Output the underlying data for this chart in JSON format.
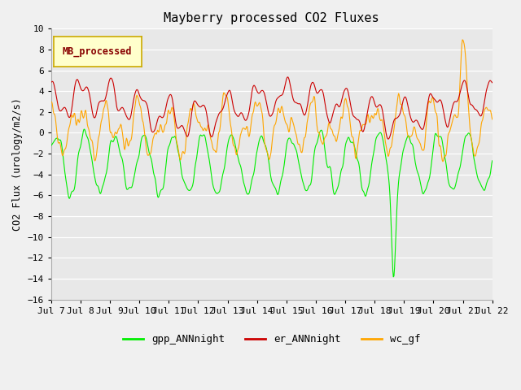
{
  "title": "Mayberry processed CO2 Fluxes",
  "ylabel": "CO2 Flux (urology/m2/s)",
  "ylim": [
    -16,
    10
  ],
  "yticks": [
    -16,
    -14,
    -12,
    -10,
    -8,
    -6,
    -4,
    -2,
    0,
    2,
    4,
    6,
    8,
    10
  ],
  "fig_bg_color": "#f0f0f0",
  "plot_bg_color": "#e8e8e8",
  "grid_color": "#ffffff",
  "legend_items": [
    "gpp_ANNnight",
    "er_ANNnight",
    "wc_gf"
  ],
  "legend_colors": [
    "#00ff00",
    "#cc0000",
    "#ffa500"
  ],
  "inset_label": "MB_processed",
  "inset_bg": "#ffffcc",
  "inset_border": "#ccaa00",
  "inset_text_color": "#880000",
  "n_points": 768,
  "line_width": 0.8,
  "day_labels": [
    "Jul 7",
    "Jul 8",
    "Jul 9",
    "Jul 10",
    "Jul 11",
    "Jul 12",
    "Jul 13",
    "Jul 14",
    "Jul 15",
    "Jul 16",
    "Jul 17",
    "Jul 18",
    "Jul 19",
    "Jul 20",
    "Jul 21",
    "Jul 22"
  ]
}
